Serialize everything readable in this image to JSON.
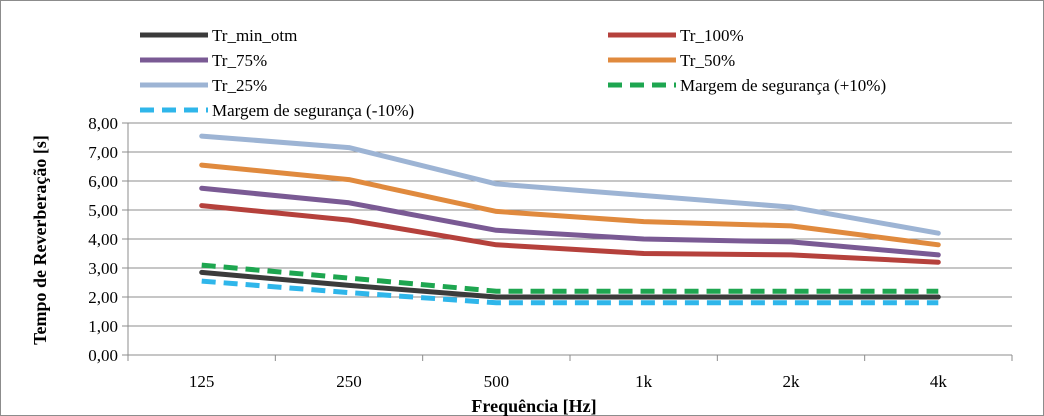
{
  "chart_data": {
    "type": "line",
    "title": "",
    "xlabel": "Frequência [Hz]",
    "ylabel": "Tempo de Reverberação [s]",
    "categories": [
      "125",
      "250",
      "500",
      "1k",
      "2k",
      "4k"
    ],
    "ylim": [
      0,
      8
    ],
    "ytick_labels": [
      "0,00",
      "1,00",
      "2,00",
      "3,00",
      "4,00",
      "5,00",
      "6,00",
      "7,00",
      "8,00"
    ],
    "grid": "horizontal",
    "legend": "top",
    "series": [
      {
        "name": "Tr_min_otm",
        "color": "#3b3b3b",
        "dashed": false,
        "values": [
          2.85,
          2.4,
          2.0,
          2.0,
          2.0,
          2.0
        ]
      },
      {
        "name": "Tr_100%",
        "color": "#b5413c",
        "dashed": false,
        "values": [
          5.15,
          4.65,
          3.8,
          3.5,
          3.45,
          3.2
        ]
      },
      {
        "name": "Tr_75%",
        "color": "#7a5a94",
        "dashed": false,
        "values": [
          5.75,
          5.25,
          4.3,
          4.0,
          3.9,
          3.45
        ]
      },
      {
        "name": "Tr_50%",
        "color": "#e08a3e",
        "dashed": false,
        "values": [
          6.55,
          6.05,
          4.95,
          4.6,
          4.45,
          3.8
        ]
      },
      {
        "name": "Tr_25%",
        "color": "#9db4d4",
        "dashed": false,
        "values": [
          7.55,
          7.15,
          5.9,
          5.5,
          5.1,
          4.2
        ]
      },
      {
        "name": "Margem de segurança (+10%)",
        "color": "#1ea650",
        "dashed": true,
        "values": [
          3.1,
          2.65,
          2.2,
          2.2,
          2.2,
          2.2
        ]
      },
      {
        "name": "Margem de segurança (-10%)",
        "color": "#2fb6ea",
        "dashed": true,
        "values": [
          2.55,
          2.15,
          1.8,
          1.8,
          1.8,
          1.8
        ]
      }
    ]
  }
}
